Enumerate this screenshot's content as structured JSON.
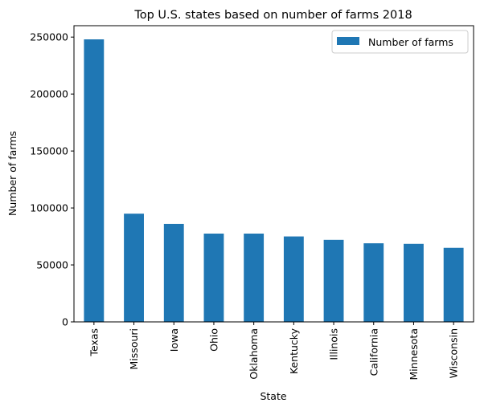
{
  "chart_data": {
    "type": "bar",
    "title": "Top U.S. states based on number of farms 2018",
    "xlabel": "State",
    "ylabel": "Number of farms",
    "categories": [
      "Texas",
      "Missouri",
      "Iowa",
      "Ohio",
      "Oklahoma",
      "Kentucky",
      "Illinois",
      "California",
      "Minnesota",
      "Wisconsin"
    ],
    "series": [
      {
        "name": "Number of farms",
        "color": "#1f77b4",
        "values": [
          248000,
          95000,
          86000,
          77500,
          77500,
          75000,
          72000,
          69000,
          68500,
          65000
        ]
      }
    ],
    "ylim": [
      0,
      260000
    ],
    "yticks": [
      0,
      50000,
      100000,
      150000,
      200000,
      250000
    ],
    "ytick_labels": [
      "0",
      "50000",
      "100000",
      "150000",
      "200000",
      "250000"
    ],
    "grid": false,
    "legend": "top-right"
  }
}
